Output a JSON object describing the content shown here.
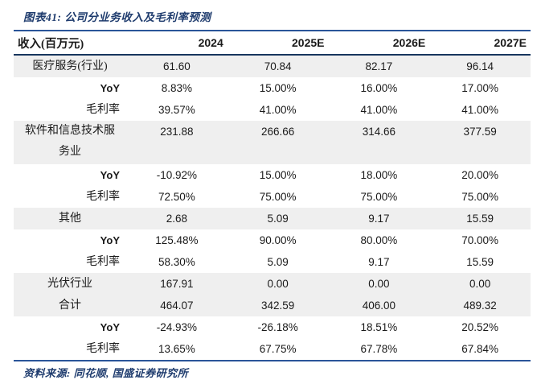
{
  "figure": {
    "title": "图表41: 公司分业务收入及毛利率预测"
  },
  "table": {
    "columns": [
      "收入(百万元)",
      "2024",
      "2025E",
      "2026E",
      "2027E"
    ],
    "rows": [
      {
        "label": "医疗服务(行业)",
        "values": [
          "61.60",
          "70.84",
          "82.17",
          "96.14"
        ]
      },
      {
        "label": "YoY",
        "values": [
          "8.83%",
          "15.00%",
          "16.00%",
          "17.00%"
        ]
      },
      {
        "label": "毛利率",
        "values": [
          "39.57%",
          "41.00%",
          "41.00%",
          "41.00%"
        ]
      },
      {
        "label": "软件和信息技术服务业",
        "values": [
          "231.88",
          "266.66",
          "314.66",
          "377.59"
        ]
      },
      {
        "label": "YoY",
        "values": [
          "-10.92%",
          "15.00%",
          "18.00%",
          "20.00%"
        ]
      },
      {
        "label": "毛利率",
        "values": [
          "72.50%",
          "75.00%",
          "75.00%",
          "75.00%"
        ]
      },
      {
        "label": "其他",
        "values": [
          "2.68",
          "5.09",
          "9.17",
          "15.59"
        ]
      },
      {
        "label": "YoY",
        "values": [
          "125.48%",
          "90.00%",
          "80.00%",
          "70.00%"
        ]
      },
      {
        "label": "毛利率",
        "values": [
          "58.30%",
          "5.09",
          "9.17",
          "15.59"
        ]
      },
      {
        "label": "光伏行业",
        "values": [
          "167.91",
          "0.00",
          "0.00",
          "0.00"
        ]
      },
      {
        "label": "合计",
        "values": [
          "464.07",
          "342.59",
          "406.00",
          "489.32"
        ]
      },
      {
        "label": "YoY",
        "values": [
          "-24.93%",
          "-26.18%",
          "18.51%",
          "20.52%"
        ]
      },
      {
        "label": "毛利率",
        "values": [
          "13.65%",
          "67.75%",
          "67.78%",
          "67.84%"
        ]
      }
    ]
  },
  "footer": {
    "source": "资料来源: 同花顺, 国盛证券研究所"
  },
  "colors": {
    "title_navy": "#1f3c6e",
    "rule_blue": "#2a5599",
    "rule_navy": "#17365d",
    "row_shade": "#efefef",
    "text": "#1a1a1a"
  }
}
